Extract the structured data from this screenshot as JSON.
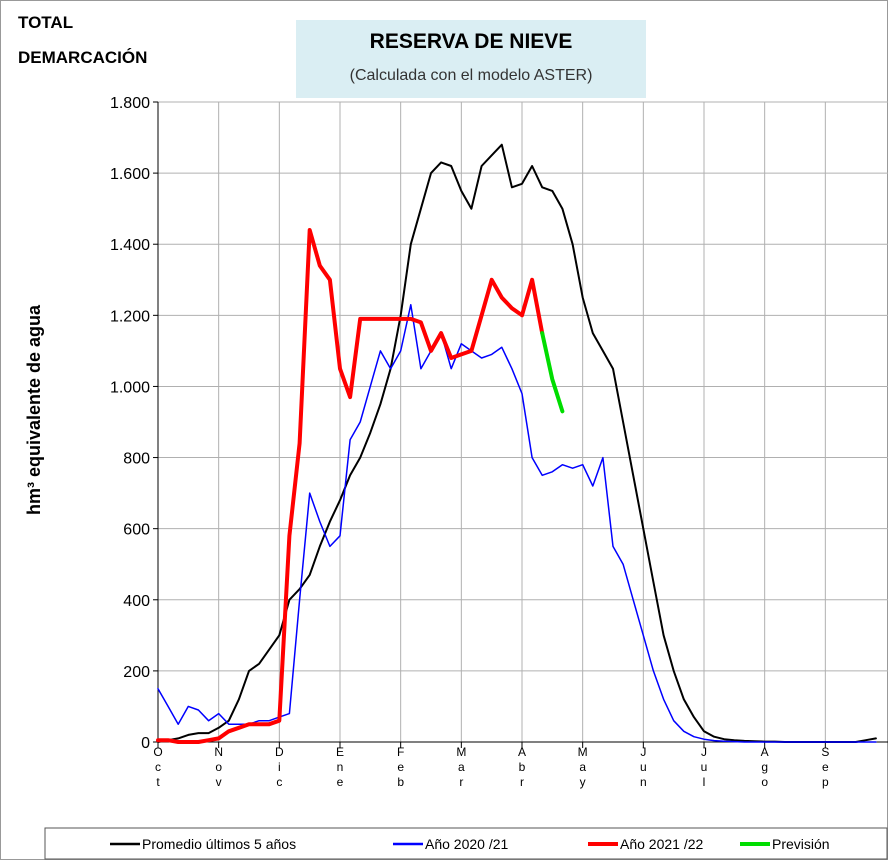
{
  "chart_data": {
    "type": "line",
    "annotations": [
      "TOTAL",
      "DEMARCACIÓN"
    ],
    "title": "RESERVA DE NIEVE",
    "subtitle": "(Calculada con el modelo ASTER)",
    "y_label": "hm³ equivalente de agua",
    "categories": [
      "Oct",
      null,
      null,
      null,
      null,
      null,
      "Nov",
      null,
      null,
      null,
      null,
      null,
      "Dic",
      null,
      null,
      null,
      null,
      null,
      "Ene",
      null,
      null,
      null,
      null,
      null,
      "Feb",
      null,
      null,
      null,
      null,
      null,
      "Mar",
      null,
      null,
      null,
      null,
      null,
      "Abr",
      null,
      null,
      null,
      null,
      null,
      "May",
      null,
      null,
      null,
      null,
      null,
      "Jun",
      null,
      null,
      null,
      null,
      null,
      "Jul",
      null,
      null,
      null,
      null,
      null,
      "Ago",
      null,
      null,
      null,
      null,
      null,
      "Sep",
      null,
      null,
      null,
      null,
      null
    ],
    "ylim": [
      0,
      1800
    ],
    "yticks": [
      0,
      200,
      400,
      600,
      800,
      {
        "value": 1000,
        "label": "1.000"
      },
      {
        "value": 1200,
        "label": "1.200"
      },
      {
        "value": 1400,
        "label": "1.400"
      },
      {
        "value": 1600,
        "label": "1.600"
      },
      {
        "value": 1800,
        "label": "1.800"
      }
    ],
    "grid": true,
    "legend": "bottom",
    "series": [
      {
        "name": "Promedio últimos 5 años",
        "color": "#000000",
        "width": 2,
        "values": [
          0,
          5,
          10,
          20,
          25,
          25,
          40,
          60,
          120,
          200,
          220,
          260,
          300,
          400,
          430,
          470,
          550,
          620,
          680,
          750,
          800,
          870,
          950,
          1050,
          1200,
          1400,
          1500,
          1600,
          1630,
          1620,
          1550,
          1500,
          1620,
          1650,
          1680,
          1560,
          1570,
          1620,
          1560,
          1550,
          1500,
          1400,
          1250,
          1150,
          1100,
          1050,
          900,
          750,
          600,
          450,
          300,
          200,
          120,
          70,
          30,
          15,
          8,
          5,
          3,
          2,
          1,
          1,
          0,
          0,
          0,
          0,
          0,
          0,
          0,
          0,
          5,
          10
        ]
      },
      {
        "name": "Año 2020 /21",
        "color": "#0000ff",
        "width": 1.5,
        "values": [
          150,
          100,
          50,
          100,
          90,
          60,
          80,
          50,
          50,
          50,
          60,
          60,
          70,
          80,
          400,
          700,
          620,
          550,
          580,
          850,
          900,
          1000,
          1100,
          1050,
          1100,
          1230,
          1050,
          1100,
          1150,
          1050,
          1120,
          1100,
          1080,
          1090,
          1110,
          1050,
          980,
          800,
          750,
          760,
          780,
          770,
          780,
          720,
          800,
          550,
          500,
          400,
          300,
          200,
          120,
          60,
          30,
          15,
          8,
          4,
          2,
          1,
          0,
          0,
          0,
          0,
          0,
          0,
          0,
          0,
          0,
          0,
          0,
          0,
          0,
          0
        ]
      },
      {
        "name": "Año 2021 /22",
        "color": "#ff0000",
        "width": 4,
        "values": [
          5,
          5,
          0,
          0,
          0,
          5,
          10,
          30,
          40,
          50,
          50,
          50,
          60,
          580,
          840,
          1440,
          1340,
          1300,
          1050,
          970,
          1190,
          1190,
          1190,
          1190,
          1190,
          1190,
          1180,
          1100,
          1150,
          1080,
          1090,
          1100,
          1200,
          1300,
          1250,
          1220,
          1200,
          1300,
          1150,
          null,
          null,
          null,
          null,
          null,
          null,
          null,
          null,
          null,
          null,
          null,
          null,
          null,
          null,
          null,
          null,
          null,
          null,
          null,
          null,
          null,
          null,
          null,
          null,
          null,
          null,
          null,
          null,
          null,
          null,
          null,
          null,
          null
        ]
      },
      {
        "name": "Previsión",
        "color": "#00dd00",
        "width": 4,
        "values": [
          null,
          null,
          null,
          null,
          null,
          null,
          null,
          null,
          null,
          null,
          null,
          null,
          null,
          null,
          null,
          null,
          null,
          null,
          null,
          null,
          null,
          null,
          null,
          null,
          null,
          null,
          null,
          null,
          null,
          null,
          null,
          null,
          null,
          null,
          null,
          null,
          null,
          null,
          1150,
          1020,
          930,
          null,
          null,
          null,
          null,
          null,
          null,
          null,
          null,
          null,
          null,
          null,
          null,
          null,
          null,
          null,
          null,
          null,
          null,
          null,
          null,
          null,
          null,
          null,
          null,
          null,
          null,
          null,
          null,
          null,
          null,
          null
        ]
      }
    ]
  }
}
